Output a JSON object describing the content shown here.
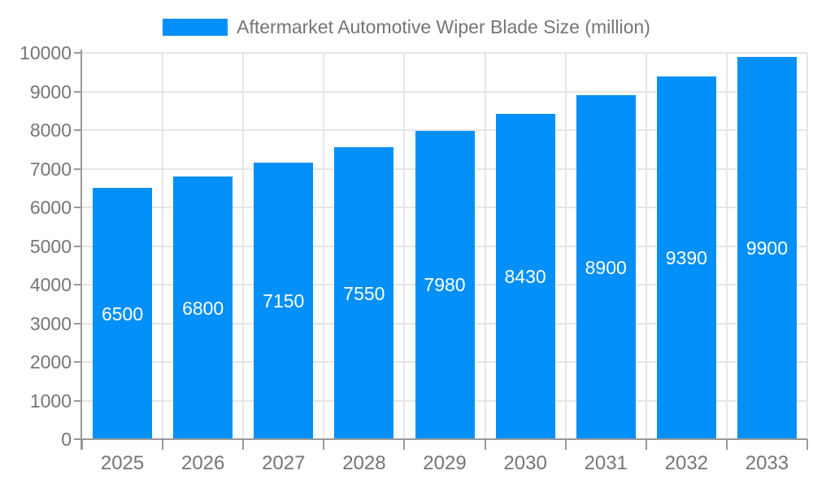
{
  "legend": {
    "label": "Aftermarket Automotive Wiper Blade Size (million)"
  },
  "chart_data": {
    "type": "bar",
    "title": "Aftermarket Automotive Wiper Blade Size (million)",
    "categories": [
      "2025",
      "2026",
      "2027",
      "2028",
      "2029",
      "2030",
      "2031",
      "2032",
      "2033"
    ],
    "values": [
      6500,
      6800,
      7150,
      7550,
      7980,
      8430,
      8900,
      9390,
      9900
    ],
    "value_labels": [
      "6500",
      "6800",
      "7150",
      "7550",
      "7980",
      "8430",
      "8900",
      "9390",
      "9900"
    ],
    "xlabel": "",
    "ylabel": "",
    "ylim": [
      0,
      10000
    ],
    "y_tick_interval": 1000,
    "y_tick_labels": [
      "0",
      "1000",
      "2000",
      "3000",
      "4000",
      "5000",
      "6000",
      "7000",
      "8000",
      "9000",
      "10000"
    ],
    "grid": true,
    "legend_position": "top-center",
    "value_label_position": "inside-middle"
  },
  "colors": {
    "bar": "#0390f8",
    "axis": "#999999",
    "gridline": "#e6e6e6",
    "tick_label_text": "#757575",
    "bar_label_text": "#ffffff",
    "background": "#ffffff"
  }
}
